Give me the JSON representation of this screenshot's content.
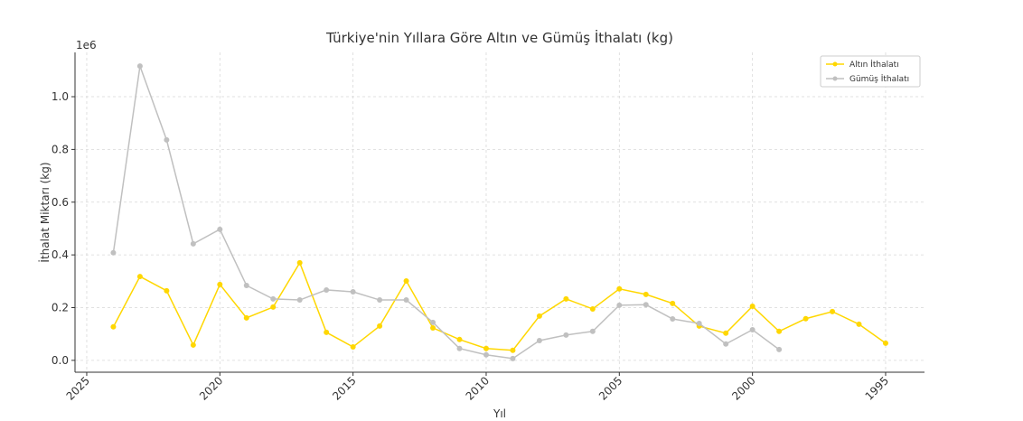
{
  "chart_data": {
    "type": "line",
    "title": "Türkiye'nin Yıllara Göre Altın ve Gümüş İthalatı (kg)",
    "x_label": "Yıl",
    "y_label": "İthalat Miktarı (kg)",
    "y_offset_label": "1e6",
    "x": [
      2024,
      2023,
      2022,
      2021,
      2020,
      2019,
      2018,
      2017,
      2016,
      2015,
      2014,
      2013,
      2012,
      2011,
      2010,
      2009,
      2008,
      2007,
      2006,
      2005,
      2004,
      2003,
      2002,
      2001,
      2000,
      1999,
      1998,
      1997,
      1996,
      1995
    ],
    "series": [
      {
        "name": "Altın İthalatı",
        "color": "#ffd700",
        "values": [
          127000,
          318000,
          264000,
          58000,
          288000,
          161000,
          202000,
          370000,
          106000,
          51000,
          130000,
          301000,
          123000,
          79000,
          45000,
          38000,
          168000,
          233000,
          195000,
          271000,
          250000,
          216000,
          130000,
          103000,
          205000,
          110000,
          158000,
          185000,
          137000,
          65000
        ]
      },
      {
        "name": "Gümüş İthalatı",
        "color": "#c0c0c0",
        "values": [
          408000,
          1116000,
          836000,
          442000,
          497000,
          284000,
          233000,
          229000,
          267000,
          260000,
          229000,
          229000,
          144000,
          45000,
          21000,
          7000,
          75000,
          96000,
          110000,
          209000,
          211000,
          157000,
          140000,
          62000,
          116000,
          41000,
          null,
          null,
          null,
          null
        ]
      }
    ],
    "xlim": [
      2025.44,
      1993.54
    ],
    "xticks": [
      2025,
      2020,
      2015,
      2010,
      2005,
      2000,
      1995
    ],
    "ylim": [
      -45000,
      1168000
    ],
    "yticks": [
      {
        "value": 0,
        "label": "0.0"
      },
      {
        "value": 200000,
        "label": "0.2"
      },
      {
        "value": 400000,
        "label": "0.4"
      },
      {
        "value": 600000,
        "label": "0.6"
      },
      {
        "value": 800000,
        "label": "0.8"
      },
      {
        "value": 1000000,
        "label": "1.0"
      }
    ],
    "grid": true,
    "legend": "upper right"
  }
}
